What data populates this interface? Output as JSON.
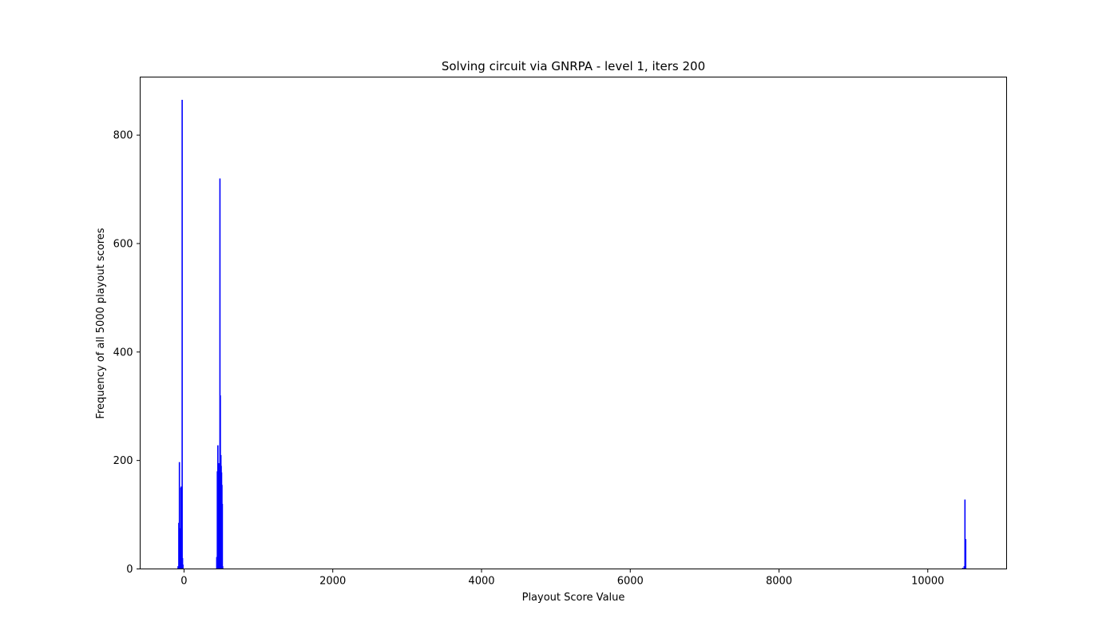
{
  "chart_data": {
    "type": "bar",
    "title": "Solving circuit via GNRPA - level 1, iters 200",
    "xlabel": "Playout Score Value",
    "ylabel": "Frequency of all 5000 playout scores",
    "xlim": [
      -590,
      11060
    ],
    "ylim": [
      0,
      907
    ],
    "xticks": [
      0,
      2000,
      4000,
      6000,
      8000,
      10000
    ],
    "yticks": [
      0,
      200,
      400,
      600,
      800
    ],
    "grid": false,
    "legend": "none",
    "bar_color": "#0000ff",
    "series": [
      {
        "x": [
          -80,
          -70,
          -62,
          -55,
          -48,
          -42,
          -36,
          -30,
          -25,
          -20,
          -14,
          440,
          448,
          455,
          460,
          468,
          473,
          478,
          483,
          488,
          492,
          496,
          500,
          505,
          510,
          515,
          520,
          10470,
          10490,
          10500,
          10510
        ],
        "values": [
          5,
          85,
          197,
          60,
          75,
          150,
          152,
          80,
          865,
          20,
          8,
          22,
          180,
          228,
          150,
          195,
          182,
          130,
          720,
          320,
          160,
          210,
          190,
          178,
          155,
          120,
          5,
          2,
          5,
          128,
          55
        ]
      }
    ]
  }
}
